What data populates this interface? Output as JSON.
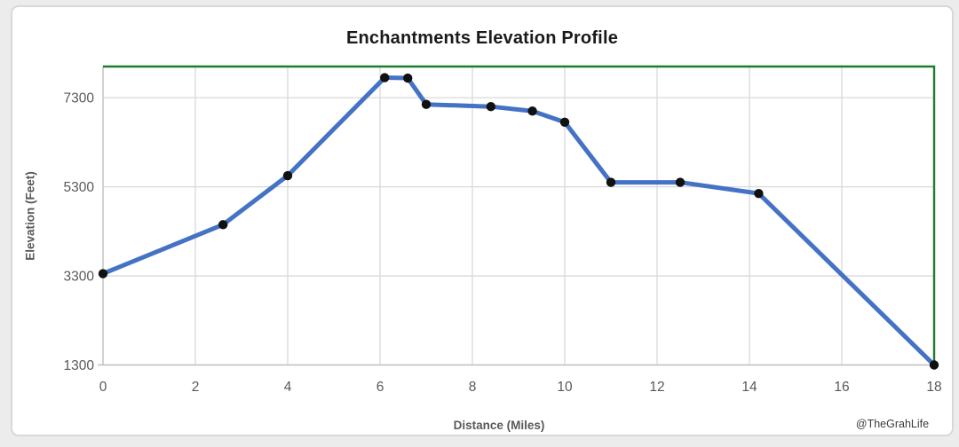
{
  "credit": "@TheGrahLife",
  "chart_data": {
    "type": "line",
    "title": "Enchantments Elevation Profile",
    "xlabel": "Distance (Miles)",
    "ylabel": "Elevation (Feet)",
    "xlim": [
      0,
      18
    ],
    "ylim": [
      1300,
      8000
    ],
    "x_ticks": [
      0,
      2,
      4,
      6,
      8,
      10,
      12,
      14,
      16,
      18
    ],
    "y_ticks": [
      1300,
      3300,
      5300,
      7300
    ],
    "grid": true,
    "legend": "none",
    "series": [
      {
        "name": "Elevation",
        "points": [
          [
            0,
            3350
          ],
          [
            2.6,
            4450
          ],
          [
            4,
            5550
          ],
          [
            6.1,
            7750
          ],
          [
            6.6,
            7740
          ],
          [
            7,
            7150
          ],
          [
            8.4,
            7100
          ],
          [
            9.3,
            7000
          ],
          [
            10,
            6750
          ],
          [
            11,
            5400
          ],
          [
            12.5,
            5400
          ],
          [
            14.2,
            5150
          ],
          [
            18,
            1300
          ]
        ]
      }
    ],
    "colors": {
      "line": "#4472c4",
      "marker": "#111111",
      "plot_border_green": "#1e7b2f",
      "gridline": "#d9d9d9",
      "axis_line": "#bfbfbf",
      "tick_text": "#595959"
    }
  }
}
